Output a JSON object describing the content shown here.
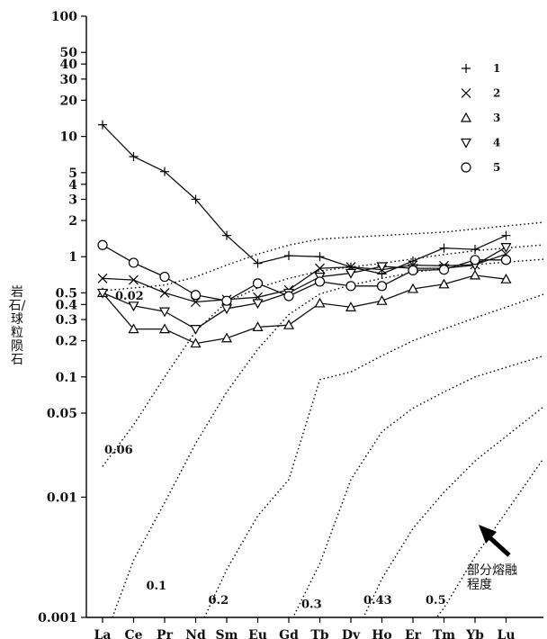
{
  "chart_data": {
    "type": "line",
    "title": "",
    "xlabel": "",
    "ylabel": "岩石/球粒陨石",
    "yscale": "log",
    "ylim": [
      0.001,
      100
    ],
    "grid": false,
    "legend_position": "top-right",
    "categories": [
      "La",
      "Ce",
      "Pr",
      "Nd",
      "Sm",
      "Eu",
      "Gd",
      "Tb",
      "Dy",
      "Ho",
      "Er",
      "Tm",
      "Yb",
      "Lu"
    ],
    "ytick_labels": [
      "100",
      "50",
      "40",
      "30",
      "20",
      "10",
      "5",
      "4",
      "3",
      "2",
      "1",
      "0.5",
      "0.4",
      "0.3",
      "0.2",
      "0.1",
      "0.05",
      "0.01",
      "0.001"
    ],
    "ytick_values": [
      100,
      50,
      40,
      30,
      20,
      10,
      5,
      4,
      3,
      2,
      1,
      0.5,
      0.4,
      0.3,
      0.2,
      0.1,
      0.05,
      0.01,
      0.001
    ],
    "series": [
      {
        "name": "1",
        "marker": "plus",
        "values": [
          12.5,
          6.8,
          5.1,
          3.0,
          1.5,
          0.88,
          1.02,
          1.0,
          0.82,
          0.72,
          0.92,
          1.18,
          1.15,
          1.5
        ]
      },
      {
        "name": "2",
        "marker": "cross",
        "values": [
          0.66,
          0.64,
          0.5,
          0.42,
          0.44,
          0.46,
          0.53,
          0.8,
          0.82,
          0.78,
          0.85,
          0.84,
          0.86,
          1.05
        ]
      },
      {
        "name": "3",
        "marker": "triangle-up",
        "values": [
          0.5,
          0.25,
          0.25,
          0.19,
          0.21,
          0.26,
          0.27,
          0.41,
          0.38,
          0.43,
          0.54,
          0.59,
          0.7,
          0.65
        ]
      },
      {
        "name": "4",
        "marker": "triangle-down",
        "values": [
          0.5,
          0.39,
          0.35,
          0.25,
          0.37,
          0.41,
          0.5,
          0.68,
          0.73,
          0.83,
          0.8,
          0.8,
          0.85,
          1.2
        ]
      },
      {
        "name": "5",
        "marker": "circle",
        "values": [
          1.25,
          0.89,
          0.68,
          0.48,
          0.43,
          0.6,
          0.47,
          0.62,
          0.57,
          0.57,
          0.77,
          0.78,
          0.94,
          0.94
        ]
      }
    ],
    "melt_curves": [
      {
        "label": "0.02",
        "values": [
          0.52,
          0.55,
          0.58,
          0.68,
          0.85,
          1.05,
          1.25,
          1.4,
          1.45,
          1.5,
          1.55,
          1.6,
          1.7,
          1.8
        ]
      },
      {
        "label": "0.06",
        "values": [
          0.018,
          0.04,
          0.1,
          0.24,
          0.42,
          0.55,
          0.66,
          0.76,
          0.82,
          0.88,
          0.96,
          1.04,
          1.12,
          1.18
        ]
      },
      {
        "label": "0.1",
        "values": [
          0.0006,
          0.003,
          0.009,
          0.028,
          0.075,
          0.17,
          0.33,
          0.49,
          0.58,
          0.66,
          0.74,
          0.8,
          0.86,
          0.9
        ]
      },
      {
        "label": "0.2",
        "values": [
          null,
          null,
          null,
          0.0007,
          0.0025,
          0.007,
          0.014,
          0.095,
          0.11,
          0.15,
          0.2,
          0.25,
          0.31,
          0.38
        ]
      },
      {
        "label": "0.3",
        "values": [
          null,
          null,
          null,
          null,
          null,
          null,
          0.00085,
          0.0028,
          0.014,
          0.035,
          0.055,
          0.075,
          0.1,
          0.12
        ]
      },
      {
        "label": "0.43",
        "values": [
          null,
          null,
          null,
          null,
          null,
          null,
          null,
          null,
          0.0006,
          0.0021,
          0.0055,
          0.011,
          0.02,
          0.032
        ]
      },
      {
        "label": "0.5",
        "values": [
          null,
          null,
          null,
          null,
          null,
          null,
          null,
          null,
          null,
          null,
          0.00055,
          0.0012,
          0.0032,
          0.0075
        ]
      }
    ],
    "curve_label_positions": [
      {
        "label": "0.02",
        "x": "La",
        "y": 0.44
      },
      {
        "label": "0.06",
        "x": "La",
        "y": 0.023
      },
      {
        "label": "0.1",
        "x": "Ce",
        "y": 0.0017
      },
      {
        "label": "0.2",
        "x": "Nd",
        "y": 0.0013
      },
      {
        "label": "0.3",
        "x": "Gd",
        "y": 0.0012
      },
      {
        "label": "0.43",
        "x": "Dy",
        "y": 0.0013
      },
      {
        "label": "0.5",
        "x": "Er",
        "y": 0.0013
      }
    ],
    "annotation": "部分熔融程度"
  }
}
